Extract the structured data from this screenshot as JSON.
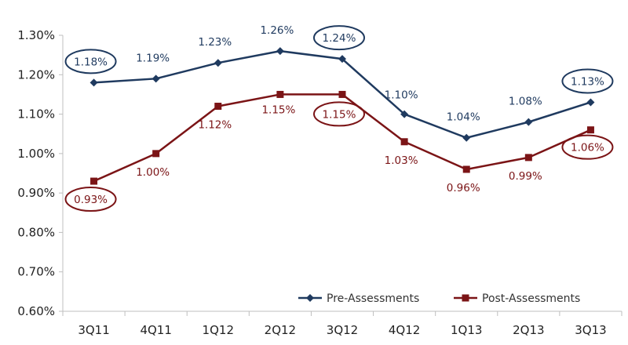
{
  "chart_data": {
    "type": "line",
    "categories": [
      "3Q11",
      "4Q11",
      "1Q12",
      "2Q12",
      "3Q12",
      "4Q12",
      "1Q13",
      "2Q13",
      "3Q13"
    ],
    "series": [
      {
        "name": "Pre-Assessments",
        "values": [
          1.18,
          1.19,
          1.23,
          1.26,
          1.24,
          1.1,
          1.04,
          1.08,
          1.13
        ],
        "labels": [
          "1.18%",
          "1.19%",
          "1.23%",
          "1.26%",
          "1.24%",
          "1.10%",
          "1.04%",
          "1.08%",
          "1.13%"
        ],
        "circled": [
          0,
          4,
          8
        ],
        "color": "#1f3a5f",
        "marker": "diamond"
      },
      {
        "name": "Post-Assessments",
        "values": [
          0.93,
          1.0,
          1.12,
          1.15,
          1.15,
          1.03,
          0.96,
          0.99,
          1.06
        ],
        "labels": [
          "0.93%",
          "1.00%",
          "1.12%",
          "1.15%",
          "1.15%",
          "1.03%",
          "0.96%",
          "0.99%",
          "1.06%"
        ],
        "circled": [
          0,
          4,
          8
        ],
        "color": "#7b1416",
        "marker": "square"
      }
    ],
    "yticks": [
      "0.60%",
      "0.70%",
      "0.80%",
      "0.90%",
      "1.00%",
      "1.10%",
      "1.20%",
      "1.30%"
    ],
    "ylim": [
      0.6,
      1.3
    ],
    "grid": false,
    "legend_position": "bottom-right",
    "title": "",
    "xlabel": "",
    "ylabel": ""
  }
}
